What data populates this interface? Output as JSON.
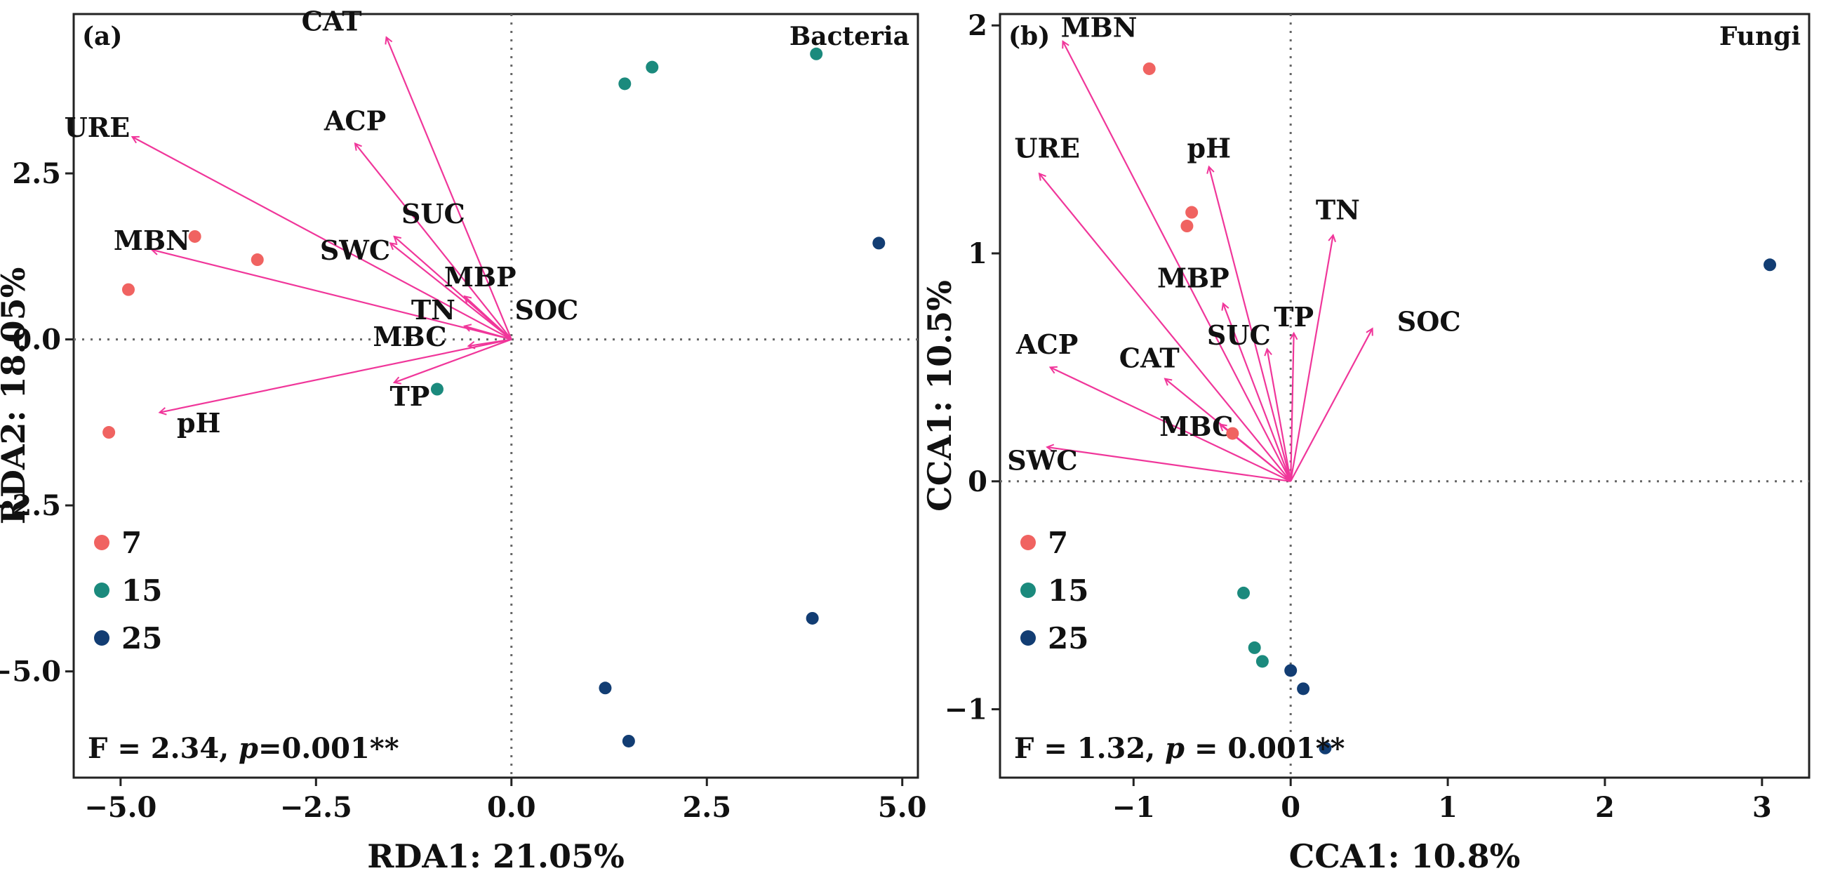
{
  "chart_data": [
    {
      "type": "scatter",
      "panel_label": "(a)",
      "corner_title": "Bacteria",
      "xlabel": "RDA1: 21.05%",
      "ylabel": "RDA2: 18.05%",
      "xlim": [
        -5.6,
        5.2
      ],
      "ylim": [
        -6.6,
        4.9
      ],
      "xticks": [
        -5.0,
        -2.5,
        0.0,
        2.5,
        5.0
      ],
      "xtick_labels": [
        "−5.0",
        "−2.5",
        "0.0",
        "2.5",
        "5.0"
      ],
      "yticks": [
        -5.0,
        -2.5,
        0.0,
        2.5
      ],
      "ytick_labels": [
        "−5.0",
        "−2.5",
        "0.0",
        "2.5"
      ],
      "vectors": [
        {
          "label": "CAT",
          "x": -1.6,
          "y": 4.55,
          "lx": -2.3,
          "ly": 4.65
        },
        {
          "label": "ACP",
          "x": -2.0,
          "y": 2.95,
          "lx": -2.0,
          "ly": 3.15
        },
        {
          "label": "URE",
          "x": -4.85,
          "y": 3.05,
          "lx": -5.3,
          "ly": 3.05
        },
        {
          "label": "SUC",
          "x": -1.5,
          "y": 1.55,
          "lx": -1.0,
          "ly": 1.75
        },
        {
          "label": "SWC",
          "x": -1.55,
          "y": 1.45,
          "lx": -2.0,
          "ly": 1.2
        },
        {
          "label": "MBN",
          "x": -4.6,
          "y": 1.35,
          "lx": -4.6,
          "ly": 1.35
        },
        {
          "label": "MBP",
          "x": -0.6,
          "y": 0.65,
          "lx": -0.4,
          "ly": 0.8
        },
        {
          "label": "TN",
          "x": -0.6,
          "y": 0.2,
          "lx": -1.0,
          "ly": 0.3
        },
        {
          "label": "SOC",
          "x": 0.0,
          "y": 0.0,
          "lx": 0.45,
          "ly": 0.3
        },
        {
          "label": "MBC",
          "x": -0.55,
          "y": -0.1,
          "lx": -1.3,
          "ly": -0.1
        },
        {
          "label": "TP",
          "x": -1.5,
          "y": -0.65,
          "lx": -1.3,
          "ly": -1.0
        },
        {
          "label": "pH",
          "x": -4.5,
          "y": -1.1,
          "lx": -4.0,
          "ly": -1.4
        }
      ],
      "series": [
        {
          "name": "7",
          "color": "#f06361",
          "points": [
            [
              -4.05,
              1.55
            ],
            [
              -3.25,
              1.2
            ],
            [
              -4.9,
              0.75
            ],
            [
              -5.15,
              -1.4
            ]
          ]
        },
        {
          "name": "15",
          "color": "#1b8a7d",
          "points": [
            [
              1.45,
              3.85
            ],
            [
              1.8,
              4.1
            ],
            [
              3.9,
              4.3
            ],
            [
              -0.95,
              -0.75
            ]
          ]
        },
        {
          "name": "25",
          "color": "#123d73",
          "points": [
            [
              4.7,
              1.45
            ],
            [
              3.85,
              -4.2
            ],
            [
              1.2,
              -5.25
            ],
            [
              1.5,
              -6.05
            ]
          ]
        }
      ],
      "legend_entries": [
        "7",
        "15",
        "25"
      ],
      "legend_position": "bottom-left",
      "stat": {
        "prefix": "F = 2.34, ",
        "italic": "p",
        "suffix": "=0.001**"
      }
    },
    {
      "type": "scatter",
      "panel_label": "(b)",
      "corner_title": "Fungi",
      "xlabel": "CCA1: 10.8%",
      "ylabel": "CCA1: 10.5%",
      "xlim": [
        -1.85,
        3.3
      ],
      "ylim": [
        -1.3,
        2.05
      ],
      "xticks": [
        -1,
        0,
        1,
        2,
        3
      ],
      "xtick_labels": [
        "−1",
        "0",
        "1",
        "2",
        "3"
      ],
      "yticks": [
        -1,
        0,
        1,
        2
      ],
      "ytick_labels": [
        "−1",
        "0",
        "1",
        "2"
      ],
      "vectors": [
        {
          "label": "MBN",
          "x": -1.45,
          "y": 1.93,
          "lx": -1.22,
          "ly": 1.95
        },
        {
          "label": "URE",
          "x": -1.6,
          "y": 1.35,
          "lx": -1.55,
          "ly": 1.42
        },
        {
          "label": "pH",
          "x": -0.52,
          "y": 1.38,
          "lx": -0.52,
          "ly": 1.42
        },
        {
          "label": "TN",
          "x": 0.27,
          "y": 1.08,
          "lx": 0.3,
          "ly": 1.15
        },
        {
          "label": "MBP",
          "x": -0.43,
          "y": 0.78,
          "lx": -0.62,
          "ly": 0.85
        },
        {
          "label": "TP",
          "x": 0.02,
          "y": 0.65,
          "lx": 0.02,
          "ly": 0.68
        },
        {
          "label": "SUC",
          "x": -0.15,
          "y": 0.58,
          "lx": -0.33,
          "ly": 0.6
        },
        {
          "label": "SOC",
          "x": 0.52,
          "y": 0.67,
          "lx": 0.88,
          "ly": 0.66
        },
        {
          "label": "ACP",
          "x": -1.53,
          "y": 0.5,
          "lx": -1.55,
          "ly": 0.56
        },
        {
          "label": "CAT",
          "x": -0.8,
          "y": 0.45,
          "lx": -0.9,
          "ly": 0.5
        },
        {
          "label": "MBC",
          "x": -0.45,
          "y": 0.25,
          "lx": -0.6,
          "ly": 0.2
        },
        {
          "label": "SWC",
          "x": -1.55,
          "y": 0.15,
          "lx": -1.58,
          "ly": 0.05
        }
      ],
      "series": [
        {
          "name": "7",
          "color": "#f06361",
          "points": [
            [
              -0.9,
              1.81
            ],
            [
              -0.63,
              1.18
            ],
            [
              -0.66,
              1.12
            ],
            [
              -0.37,
              0.21
            ]
          ]
        },
        {
          "name": "15",
          "color": "#1b8a7d",
          "points": [
            [
              -0.3,
              -0.49
            ],
            [
              -0.23,
              -0.73
            ],
            [
              -0.18,
              -0.79
            ]
          ]
        },
        {
          "name": "25",
          "color": "#123d73",
          "points": [
            [
              3.05,
              0.95
            ],
            [
              0.0,
              -0.83
            ],
            [
              0.08,
              -0.91
            ],
            [
              0.22,
              -1.17
            ]
          ]
        }
      ],
      "legend_entries": [
        "7",
        "15",
        "25"
      ],
      "legend_position": "bottom-left",
      "stat": {
        "prefix": "F = 1.32, ",
        "italic": "p",
        "suffix": " = 0.001**"
      }
    }
  ],
  "colors": {
    "arrow": "#f0369a",
    "axis": "#222222",
    "zero_line": "#666666"
  }
}
